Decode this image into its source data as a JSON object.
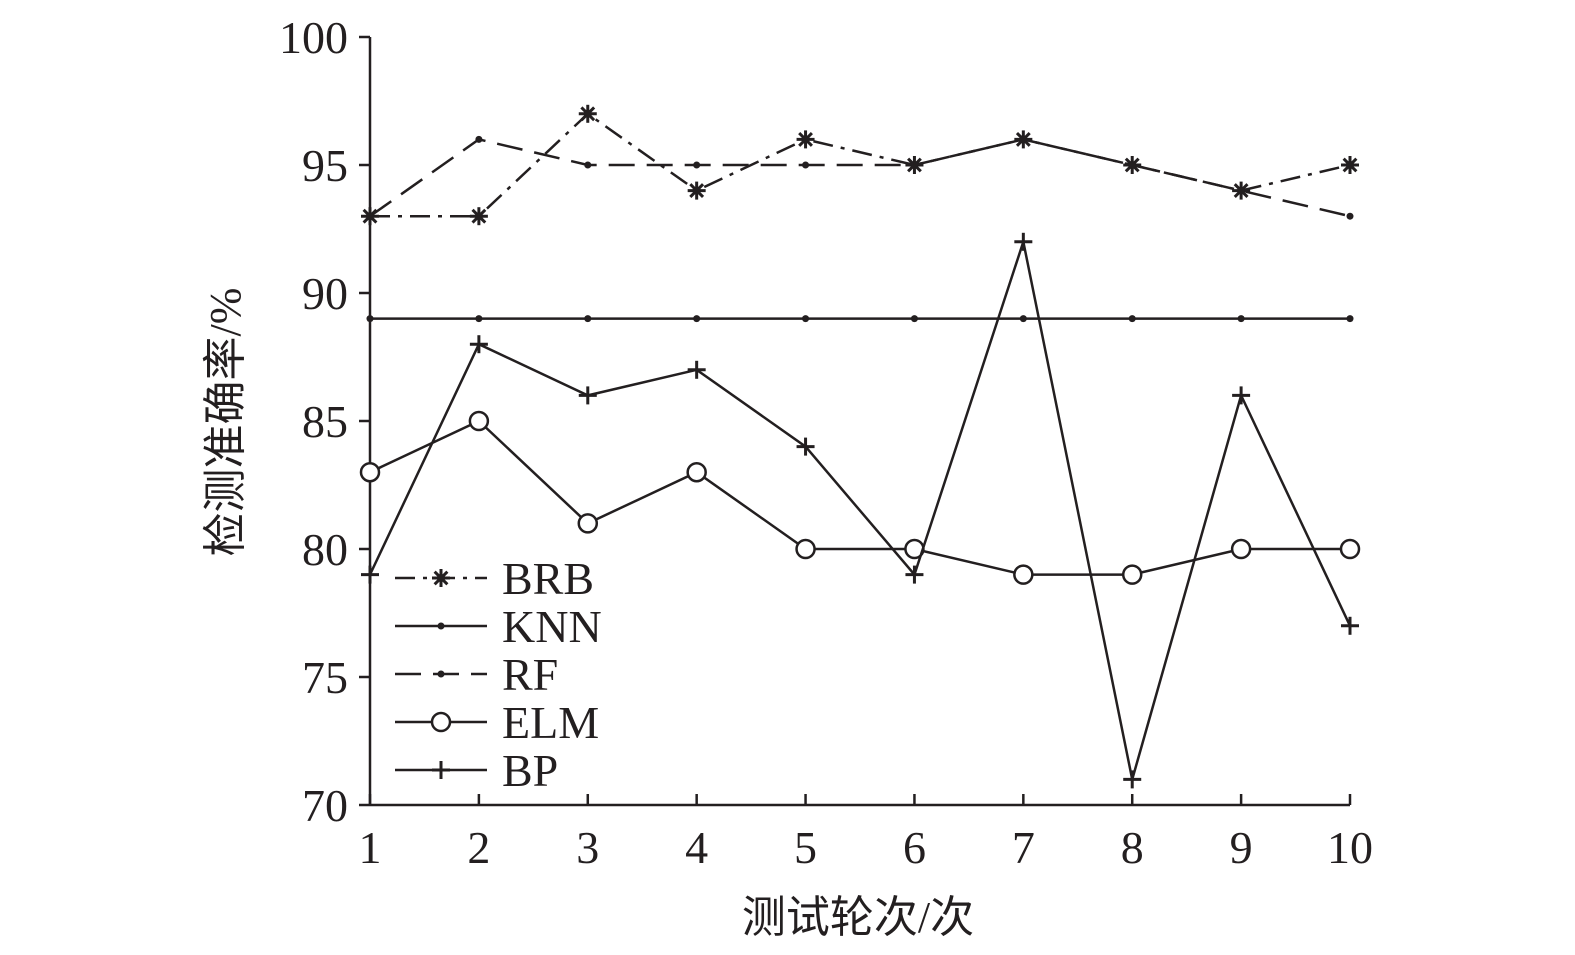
{
  "chart_data": {
    "type": "line",
    "title": "",
    "xlabel": "测试轮次/次",
    "ylabel": "检测准确率/%",
    "x": [
      1,
      2,
      3,
      4,
      5,
      6,
      7,
      8,
      9,
      10
    ],
    "xlim": [
      1,
      10
    ],
    "ylim": [
      70,
      100
    ],
    "yticks": [
      70,
      75,
      80,
      85,
      90,
      95,
      100
    ],
    "grid": false,
    "legend_position": "bottom-left",
    "line_color": "#231f20",
    "series": [
      {
        "name": "BRB",
        "values": [
          93,
          93,
          97,
          94,
          96,
          95,
          96,
          95,
          94,
          95
        ],
        "line_style": "dash-dot",
        "marker": "asterisk"
      },
      {
        "name": "KNN",
        "values": [
          89,
          89,
          89,
          89,
          89,
          89,
          89,
          89,
          89,
          89
        ],
        "line_style": "solid",
        "marker": "dot"
      },
      {
        "name": "RF",
        "values": [
          93,
          96,
          95,
          95,
          95,
          95,
          96,
          95,
          94,
          93
        ],
        "line_style": "dashed",
        "marker": "dot"
      },
      {
        "name": "ELM",
        "values": [
          83,
          85,
          81,
          83,
          80,
          80,
          79,
          79,
          80,
          80
        ],
        "line_style": "solid",
        "marker": "circle"
      },
      {
        "name": "BP",
        "values": [
          79,
          88,
          86,
          87,
          84,
          79,
          92,
          71,
          86,
          77
        ],
        "line_style": "solid",
        "marker": "plus"
      }
    ]
  }
}
